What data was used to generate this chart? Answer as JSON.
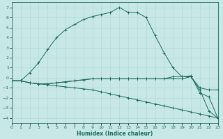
{
  "xlabel": "Humidex (Indice chaleur)",
  "bg_color": "#c8e8e8",
  "line_color": "#1a6b5a",
  "grid_color": "#b0d4d4",
  "xlim": [
    0,
    23
  ],
  "ylim": [
    -4.5,
    7.5
  ],
  "yticks": [
    -4,
    -3,
    -2,
    -1,
    0,
    1,
    2,
    3,
    4,
    5,
    6,
    7
  ],
  "xticks": [
    0,
    1,
    2,
    3,
    4,
    5,
    6,
    7,
    8,
    9,
    10,
    11,
    12,
    13,
    14,
    15,
    16,
    17,
    18,
    19,
    20,
    21,
    22,
    23
  ],
  "series": [
    {
      "x": [
        0,
        1,
        2,
        3,
        4,
        5,
        6,
        7,
        8,
        9,
        10,
        11,
        12,
        13,
        14,
        15,
        16,
        17,
        18,
        19,
        20,
        21,
        22,
        23
      ],
      "y": [
        -0.3,
        -0.3,
        0.5,
        1.5,
        2.8,
        4.0,
        4.8,
        5.3,
        5.8,
        6.1,
        6.3,
        6.5,
        7.0,
        6.5,
        6.5,
        6.0,
        4.2,
        2.5,
        1.0,
        0.1,
        0.2,
        -1.5,
        -1.9,
        -4.0
      ]
    },
    {
      "x": [
        0,
        1,
        2,
        3,
        4,
        5,
        6,
        7,
        8,
        9,
        10,
        11,
        12,
        13,
        14,
        15,
        16,
        17,
        18,
        19,
        20,
        21,
        22,
        23
      ],
      "y": [
        -0.3,
        -0.3,
        -0.5,
        -0.6,
        -0.6,
        -0.5,
        -0.4,
        -0.3,
        -0.2,
        -0.1,
        -0.1,
        -0.1,
        -0.1,
        -0.1,
        -0.1,
        -0.1,
        -0.1,
        -0.1,
        0.1,
        0.1,
        0.1,
        -1.2,
        -3.3,
        -4.0
      ]
    },
    {
      "x": [
        0,
        1,
        2,
        3,
        4,
        5,
        6,
        7,
        8,
        9,
        10,
        11,
        12,
        13,
        14,
        15,
        16,
        17,
        18,
        19,
        20,
        21,
        22,
        23
      ],
      "y": [
        -0.3,
        -0.3,
        -0.5,
        -0.6,
        -0.6,
        -0.5,
        -0.4,
        -0.3,
        -0.2,
        -0.1,
        -0.1,
        -0.1,
        -0.1,
        -0.1,
        -0.1,
        -0.1,
        -0.1,
        -0.1,
        -0.1,
        -0.1,
        0.1,
        -1.0,
        -1.2,
        -1.2
      ]
    },
    {
      "x": [
        0,
        1,
        2,
        3,
        4,
        5,
        6,
        7,
        8,
        9,
        10,
        11,
        12,
        13,
        14,
        15,
        16,
        17,
        18,
        19,
        20,
        21,
        22,
        23
      ],
      "y": [
        -0.3,
        -0.3,
        -0.5,
        -0.6,
        -0.7,
        -0.8,
        -0.9,
        -1.0,
        -1.1,
        -1.2,
        -1.4,
        -1.6,
        -1.8,
        -2.0,
        -2.2,
        -2.4,
        -2.6,
        -2.8,
        -3.0,
        -3.2,
        -3.4,
        -3.6,
        -3.8,
        -4.0
      ]
    }
  ]
}
